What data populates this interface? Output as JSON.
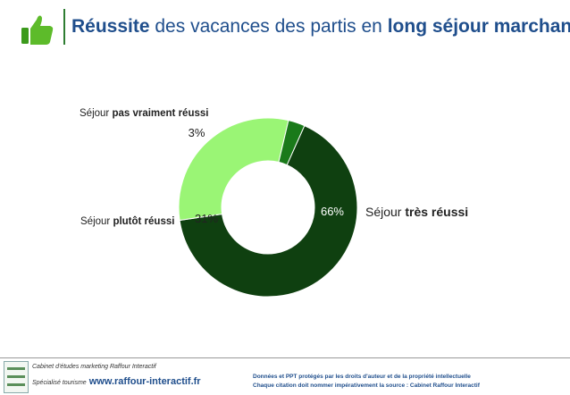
{
  "header": {
    "title_bold_1": "Réussite",
    "title_mid": " des vacances des partis en ",
    "title_bold_2": "long séjour marchand",
    "icon": "thumbs-up-icon"
  },
  "chart_data": {
    "type": "pie",
    "variant": "donut",
    "slices": [
      {
        "label_prefix": "Séjour ",
        "label_bold": "très réussi",
        "value": 66,
        "display": "66%",
        "color": "#0f4010"
      },
      {
        "label_prefix": "Séjour ",
        "label_bold": "plutôt réussi",
        "value": 31,
        "display": "31%",
        "color": "#9af575"
      },
      {
        "label_prefix": "Séjour ",
        "label_bold": "pas vraiment réussi",
        "value": 3,
        "display": "3%",
        "color": "#1a7a1a"
      }
    ]
  },
  "footer": {
    "left_line1": "Cabinet d'études marketing Raffour Interactif",
    "left_line2": "Spécialisé tourisme",
    "url": "www.raffour-interactif.fr",
    "right_line1": "Données et PPT protégés par les droits d'auteur et de la propriété intellectuelle",
    "right_line2": "Chaque citation doit nommer impérativement la source : Cabinet Raffour Interactif"
  }
}
